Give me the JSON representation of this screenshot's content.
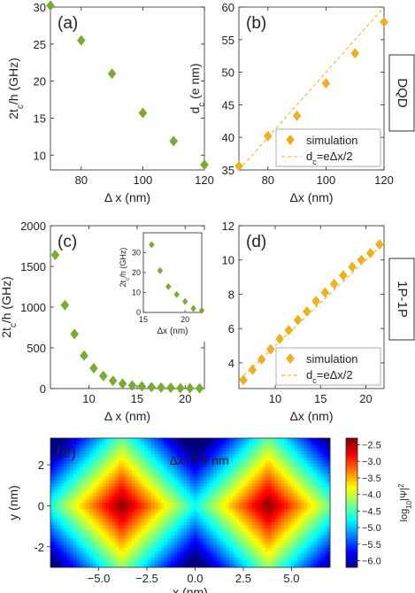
{
  "figure": {
    "row_labels": [
      "DQD",
      "1P-1P"
    ]
  },
  "colors": {
    "green_marker": "#77ac30",
    "orange_marker": "#edb120",
    "fit_line": "#edb120",
    "axis": "#262626"
  },
  "chart_data": [
    {
      "id": "a",
      "panel_label": "(a)",
      "type": "scatter",
      "marker": "diamond",
      "color": "#77ac30",
      "x": [
        70,
        80,
        90,
        100,
        110,
        120
      ],
      "y": [
        30.2,
        25.5,
        21.0,
        15.7,
        11.9,
        8.7
      ],
      "xlim": [
        70,
        120
      ],
      "ylim": [
        8,
        30
      ],
      "xticks": [
        80,
        100,
        120
      ],
      "yticks": [
        10,
        15,
        20,
        25,
        30
      ],
      "xlabel": "Δ x (nm)",
      "ylabel": "2t_c/h (GHz)"
    },
    {
      "id": "b",
      "panel_label": "(b)",
      "type": "scatter",
      "marker": "diamond",
      "color": "#edb120",
      "x": [
        70,
        80,
        90,
        100,
        110,
        120
      ],
      "y": [
        35.6,
        40.2,
        43.3,
        48.3,
        52.9,
        57.7
      ],
      "fit_line": {
        "x": [
          70,
          120
        ],
        "y": [
          35,
          60
        ]
      },
      "xlim": [
        70,
        120
      ],
      "ylim": [
        35,
        60
      ],
      "xticks": [
        80,
        100,
        120
      ],
      "yticks": [
        35,
        40,
        45,
        50,
        55,
        60
      ],
      "xlabel": "Δx (nm)",
      "ylabel": "d_c (e nm)",
      "legend": [
        "simulation",
        "d_c=eΔx/2"
      ],
      "legend_position": "bottom-right"
    },
    {
      "id": "c",
      "panel_label": "(c)",
      "type": "scatter",
      "marker": "diamond",
      "color": "#77ac30",
      "x": [
        6.5,
        7.5,
        8.5,
        9.5,
        10.5,
        11.5,
        12.5,
        13.5,
        14.5,
        15.5,
        16.5,
        17.5,
        18.5,
        19.5,
        20.5,
        21.5
      ],
      "y": [
        1640,
        1025,
        670,
        405,
        250,
        155,
        95,
        60,
        38,
        28,
        18,
        12,
        9,
        6,
        4,
        3
      ],
      "xlim": [
        6,
        22
      ],
      "ylim": [
        0,
        2000
      ],
      "xticks": [
        10,
        15,
        20
      ],
      "yticks": [
        0,
        500,
        1000,
        1500,
        2000
      ],
      "xlabel": "Δ x (nm)",
      "ylabel": "2t_c/h (GHz)",
      "inset": {
        "x": [
          16,
          17,
          18,
          19,
          20,
          21,
          22
        ],
        "y": [
          34,
          21,
          13,
          9,
          5.5,
          2,
          1
        ],
        "xlim": [
          15,
          22
        ],
        "ylim": [
          0,
          40
        ],
        "xticks": [
          15,
          20
        ],
        "yticks": [
          0,
          10,
          20,
          30
        ],
        "xlabel": "Δx (nm)",
        "ylabel": "2t_c/h (GHz)"
      }
    },
    {
      "id": "d",
      "panel_label": "(d)",
      "type": "scatter",
      "marker": "diamond",
      "color": "#edb120",
      "x": [
        6.5,
        7.5,
        8.5,
        9.5,
        10.5,
        11.5,
        12.5,
        13.5,
        14.5,
        15.5,
        16.5,
        17.5,
        18.5,
        19.5,
        20.5,
        21.5
      ],
      "y": [
        3.0,
        3.6,
        4.2,
        4.8,
        5.4,
        5.9,
        6.5,
        7.0,
        7.6,
        8.1,
        8.6,
        9.1,
        9.6,
        10.0,
        10.4,
        10.9
      ],
      "fit_line": {
        "x": [
          6,
          22
        ],
        "y": [
          3.0,
          11.0
        ]
      },
      "xlim": [
        6,
        22
      ],
      "ylim": [
        2.5,
        12
      ],
      "xticks": [
        10,
        15,
        20
      ],
      "yticks": [
        4,
        6,
        8,
        10,
        12
      ],
      "xlabel": "Δx (nm)",
      "ylabel": "d_c (e nm)",
      "legend": [
        "simulation",
        "d_c=eΔx/2"
      ],
      "legend_position": "bottom-right"
    },
    {
      "id": "e",
      "panel_label": "(e)",
      "type": "heatmap",
      "annotation": "Δx=7.6 nm",
      "xlim": [
        -7.5,
        7
      ],
      "ylim": [
        -3,
        3.3
      ],
      "xticks": [
        -5.0,
        -2.5,
        0.0,
        2.5,
        5.0
      ],
      "xtick_labels": [
        "−5.0",
        "−2.5",
        "0.0",
        "2.5",
        "5.0"
      ],
      "yticks": [
        -2,
        0,
        2
      ],
      "xlabel": "x (nm)",
      "ylabel": "y (nm)",
      "dot_centers_x": [
        -3.8,
        3.8
      ],
      "colorbar": {
        "label": "log10|Ψ|^2",
        "range": [
          -6.2,
          -2.3
        ],
        "ticks": [
          -2.5,
          -3.0,
          -3.5,
          -4.0,
          -4.5,
          -5.0,
          -5.5,
          -6.0
        ],
        "tick_labels": [
          "−2.5",
          "−3.0",
          "−3.5",
          "−4.0",
          "−4.5",
          "−5.0",
          "−5.5",
          "−6.0"
        ]
      }
    }
  ]
}
